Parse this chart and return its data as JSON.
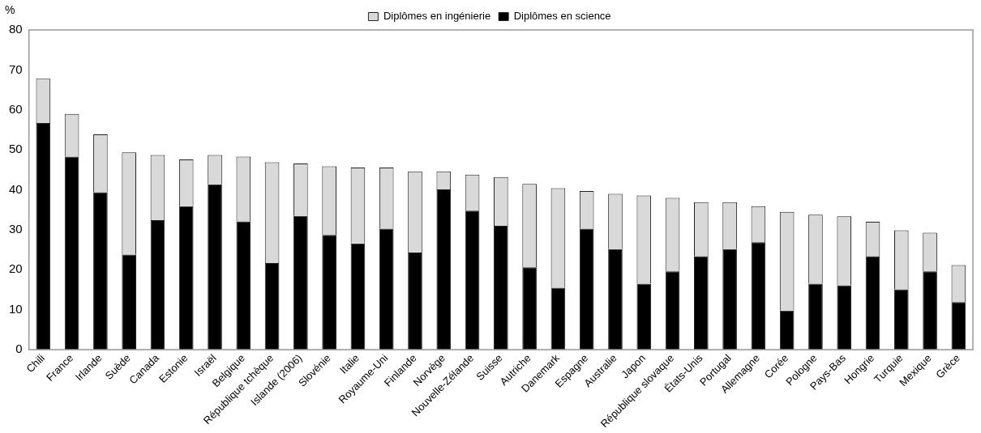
{
  "chart_data": {
    "type": "bar",
    "ylabel": "%",
    "stacked": true,
    "legend": "top",
    "grid": false,
    "categories": [
      "Chili",
      "France",
      "Irlande",
      "Suède",
      "Canada",
      "Estonie",
      "Israël",
      "Belgique",
      "République tchèque",
      "Islande (2006)",
      "Slovénie",
      "Italie",
      "Royaume-Uni",
      "Finlande",
      "Norvège",
      "Nouvelle-Zélande",
      "Suisse",
      "Autriche",
      "Danemark",
      "Espagne",
      "Australie",
      "Japon",
      "République slovaque",
      "États-Unis",
      "Portugal",
      "Allemagne",
      "Corée",
      "Pologne",
      "Pays-Bas",
      "Hongrie",
      "Turquie",
      "Mexique",
      "Grèce"
    ],
    "series": [
      {
        "name": "Diplômes en science",
        "color": "#000000",
        "values": [
          56.7,
          48.3,
          39.4,
          23.8,
          32.4,
          35.9,
          41.4,
          32.1,
          21.7,
          33.5,
          28.7,
          26.6,
          30.3,
          24.3,
          40.1,
          34.8,
          31.0,
          20.6,
          15.5,
          30.3,
          25.2,
          16.5,
          19.6,
          23.4,
          25.2,
          26.9,
          9.8,
          16.5,
          16.1,
          23.4,
          15.1,
          19.6,
          11.9
        ]
      },
      {
        "name": "Diplômes en ingénierie",
        "color": "#d9d9d9",
        "values": [
          11.1,
          10.7,
          14.5,
          25.6,
          16.3,
          11.7,
          7.3,
          16.2,
          25.2,
          13.1,
          17.2,
          19.0,
          15.3,
          20.3,
          4.5,
          9.0,
          12.2,
          20.9,
          24.9,
          9.4,
          13.8,
          22.1,
          18.4,
          13.5,
          11.7,
          9.0,
          24.7,
          17.3,
          17.3,
          8.6,
          14.8,
          9.7,
          9.3
        ]
      }
    ],
    "ylim": [
      0,
      80
    ],
    "yticks": [
      0,
      10,
      20,
      30,
      40,
      50,
      60,
      70,
      80
    ]
  }
}
